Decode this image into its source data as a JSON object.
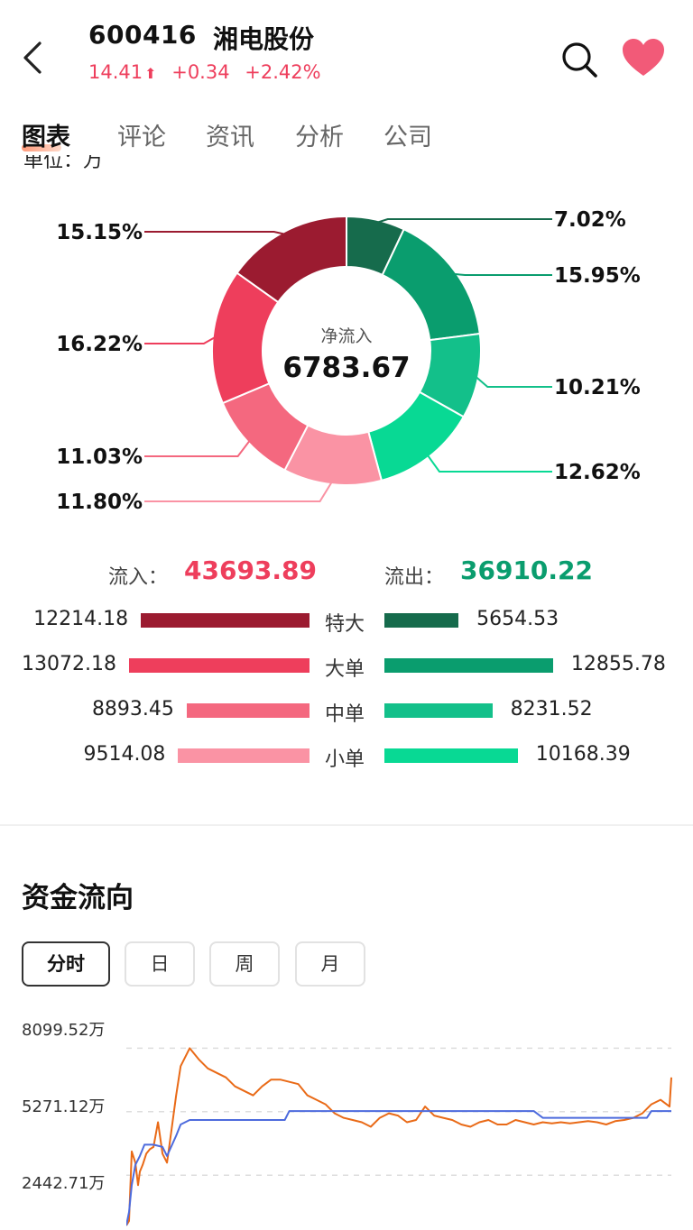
{
  "header": {
    "stock_code": "600416",
    "stock_name": "湘电股份",
    "price": "14.41",
    "change": "+0.34",
    "change_pct": "+2.42%"
  },
  "tabs": [
    {
      "label": "图表",
      "active": true
    },
    {
      "label": "评论",
      "active": false
    },
    {
      "label": "资讯",
      "active": false
    },
    {
      "label": "分析",
      "active": false
    },
    {
      "label": "公司",
      "active": false
    }
  ],
  "unit_label": "单位：万",
  "donut": {
    "center_title": "净流入",
    "center_value": "6783.67",
    "inflow_slices": [
      {
        "name": "特大",
        "pct": 15.15,
        "label": "15.15%",
        "color": "#9b1b30"
      },
      {
        "name": "大单",
        "pct": 16.22,
        "label": "16.22%",
        "color": "#ee3e5c"
      },
      {
        "name": "中单",
        "pct": 11.03,
        "label": "11.03%",
        "color": "#f4687f"
      },
      {
        "name": "小单",
        "pct": 11.8,
        "label": "11.80%",
        "color": "#fa93a4"
      }
    ],
    "outflow_slices": [
      {
        "name": "特大",
        "pct": 7.02,
        "label": "7.02%",
        "color": "#166b4c"
      },
      {
        "name": "大单",
        "pct": 15.95,
        "label": "15.95%",
        "color": "#0a9d6e"
      },
      {
        "name": "中单",
        "pct": 10.21,
        "label": "10.21%",
        "color": "#13c08a"
      },
      {
        "name": "小单",
        "pct": 12.62,
        "label": "12.62%",
        "color": "#08d994"
      }
    ]
  },
  "flow": {
    "in_label": "流入：",
    "in_value": "43693.89",
    "out_label": "流出：",
    "out_value": "36910.22",
    "rows": [
      {
        "label": "特大",
        "in": "12214.18",
        "out": "5654.53"
      },
      {
        "label": "大单",
        "in": "13072.18",
        "out": "12855.78"
      },
      {
        "label": "中单",
        "in": "8893.45",
        "out": "8231.52"
      },
      {
        "label": "小单",
        "in": "9514.08",
        "out": "10168.39"
      }
    ]
  },
  "capital": {
    "title": "资金流向",
    "periods": [
      {
        "label": "分时",
        "active": true
      },
      {
        "label": "日",
        "active": false
      },
      {
        "label": "周",
        "active": false
      },
      {
        "label": "月",
        "active": false
      }
    ],
    "y_labels": [
      "8099.52万",
      "5271.12万",
      "2442.71万"
    ]
  },
  "chart_data": {
    "type": "line",
    "ylim": [
      0,
      9000
    ],
    "series": [
      {
        "color": "#e96a17",
        "x": [
          0,
          3,
          6,
          10,
          13,
          15,
          18,
          22,
          26,
          30,
          35,
          40,
          45,
          50,
          55,
          60,
          70,
          80,
          90,
          100,
          110,
          120,
          130,
          140,
          150,
          160,
          170,
          180,
          190,
          200,
          210,
          220,
          230,
          240,
          250,
          260,
          270,
          280,
          290,
          300,
          310,
          320,
          330,
          340,
          350,
          360,
          370,
          380,
          390,
          400,
          410,
          420,
          430,
          440,
          450,
          460,
          470,
          480,
          490,
          500,
          510,
          520,
          530,
          540,
          550,
          560,
          570,
          580,
          590,
          600,
          602
        ],
        "values": [
          200,
          400,
          3500,
          3000,
          2000,
          2600,
          2900,
          3400,
          3600,
          3700,
          4800,
          3400,
          3000,
          4500,
          6000,
          7300,
          8100,
          7600,
          7200,
          7000,
          6800,
          6400,
          6200,
          6000,
          6400,
          6700,
          6700,
          6600,
          6500,
          6000,
          5800,
          5600,
          5200,
          5000,
          4900,
          4800,
          4600,
          5000,
          5200,
          5100,
          4800,
          4900,
          5500,
          5100,
          5000,
          4900,
          4700,
          4600,
          4800,
          4900,
          4700,
          4700,
          4900,
          4800,
          4700,
          4800,
          4750,
          4800,
          4750,
          4800,
          4850,
          4800,
          4700,
          4850,
          4900,
          5000,
          5200,
          5600,
          5800,
          5500,
          6800
        ]
      },
      {
        "color": "#4d6bdd",
        "x": [
          0,
          3,
          6,
          10,
          15,
          20,
          25,
          30,
          40,
          45,
          55,
          60,
          70,
          80,
          100,
          120,
          150,
          175,
          180,
          200,
          250,
          300,
          350,
          400,
          450,
          460,
          500,
          550,
          575,
          580,
          600,
          602
        ],
        "values": [
          200,
          800,
          2000,
          2900,
          3300,
          3800,
          3800,
          3800,
          3700,
          3300,
          4200,
          4700,
          4900,
          4900,
          4900,
          4900,
          4900,
          4900,
          5300,
          5300,
          5300,
          5300,
          5300,
          5300,
          5300,
          5000,
          5000,
          5000,
          5000,
          5300,
          5300,
          5300
        ]
      }
    ]
  }
}
